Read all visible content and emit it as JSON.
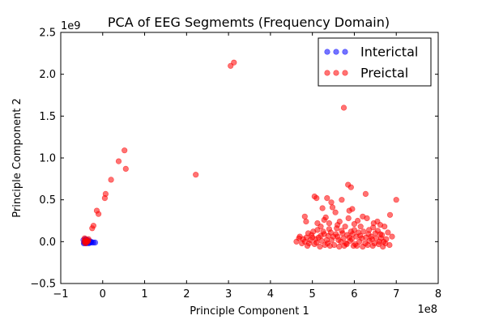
{
  "chart_data": {
    "type": "scatter",
    "title": "PCA of EEG Segmemts (Frequency Domain)",
    "xlabel": "Principle Component 1",
    "ylabel": "Principle Component 2",
    "x_multiplier_label": "1e8",
    "y_multiplier_label": "1e9",
    "xlim": [
      -1,
      8
    ],
    "ylim": [
      -0.5,
      2.5
    ],
    "x_ticks": [
      -1,
      0,
      1,
      2,
      3,
      4,
      5,
      6,
      7,
      8
    ],
    "x_tick_labels": [
      "−1",
      "0",
      "1",
      "2",
      "3",
      "4",
      "5",
      "6",
      "7",
      "8"
    ],
    "y_ticks": [
      -0.5,
      0.0,
      0.5,
      1.0,
      1.5,
      2.0,
      2.5
    ],
    "y_tick_labels": [
      "−0.5",
      "0.0",
      "0.5",
      "1.0",
      "1.5",
      "2.0",
      "2.5"
    ],
    "grid": false,
    "legend_position": "top-right",
    "series": [
      {
        "name": "Interictal",
        "color": "#0000ff",
        "points": [
          [
            -0.46,
            0.02
          ],
          [
            -0.44,
            -0.01
          ],
          [
            -0.42,
            0.01
          ],
          [
            -0.4,
            0.0
          ],
          [
            -0.38,
            0.02
          ],
          [
            -0.36,
            -0.01
          ],
          [
            -0.34,
            0.0
          ],
          [
            -0.32,
            0.01
          ],
          [
            -0.3,
            -0.01
          ],
          [
            -0.28,
            0.0
          ],
          [
            -0.26,
            -0.01
          ],
          [
            -0.22,
            -0.01
          ],
          [
            -0.18,
            -0.01
          ],
          [
            -0.41,
            0.03
          ],
          [
            -0.37,
            0.02
          ],
          [
            -0.33,
            -0.02
          ],
          [
            -0.45,
            -0.02
          ],
          [
            -0.39,
            -0.02
          ],
          [
            -0.43,
            0.0
          ]
        ]
      },
      {
        "name": "Preictal",
        "color": "#ff0000",
        "points": [
          [
            -0.44,
            0.0
          ],
          [
            -0.42,
            0.02
          ],
          [
            -0.4,
            -0.01
          ],
          [
            -0.38,
            0.01
          ],
          [
            -0.36,
            0.0
          ],
          [
            -0.34,
            0.03
          ],
          [
            -0.43,
            0.04
          ],
          [
            -0.41,
            -0.02
          ],
          [
            -0.35,
            0.01
          ],
          [
            -0.25,
            0.16
          ],
          [
            -0.22,
            0.19
          ],
          [
            -0.14,
            0.37
          ],
          [
            -0.1,
            0.33
          ],
          [
            0.05,
            0.52
          ],
          [
            0.07,
            0.57
          ],
          [
            0.2,
            0.74
          ],
          [
            0.38,
            0.96
          ],
          [
            0.52,
            1.09
          ],
          [
            0.55,
            0.87
          ],
          [
            2.22,
            0.8
          ],
          [
            3.05,
            2.1
          ],
          [
            3.13,
            2.14
          ],
          [
            5.75,
            1.6
          ],
          [
            7.0,
            0.5
          ],
          [
            5.05,
            0.54
          ],
          [
            5.1,
            0.52
          ],
          [
            5.85,
            0.68
          ],
          [
            5.92,
            0.65
          ],
          [
            6.27,
            0.57
          ],
          [
            4.82,
            0.3
          ],
          [
            4.85,
            0.24
          ],
          [
            5.28,
            0.26
          ],
          [
            5.4,
            0.22
          ],
          [
            5.55,
            0.35
          ],
          [
            5.88,
            0.37
          ],
          [
            5.95,
            0.39
          ],
          [
            6.55,
            0.24
          ],
          [
            6.85,
            0.32
          ],
          [
            6.72,
            0.18
          ],
          [
            5.45,
            0.47
          ],
          [
            5.48,
            0.41
          ],
          [
            5.35,
            0.52
          ],
          [
            5.7,
            0.5
          ],
          [
            5.32,
            0.29
          ],
          [
            5.65,
            0.24
          ],
          [
            6.08,
            0.25
          ],
          [
            6.3,
            0.28
          ],
          [
            6.45,
            0.17
          ],
          [
            6.62,
            0.2
          ],
          [
            5.2,
            0.18
          ],
          [
            5.12,
            0.14
          ],
          [
            4.9,
            0.1
          ],
          [
            5.02,
            0.12
          ],
          [
            5.58,
            0.16
          ],
          [
            5.78,
            0.18
          ],
          [
            5.92,
            0.12
          ],
          [
            6.15,
            0.18
          ],
          [
            6.35,
            0.14
          ],
          [
            6.8,
            0.11
          ],
          [
            6.9,
            0.06
          ],
          [
            4.7,
            0.06
          ],
          [
            4.78,
            0.03
          ],
          [
            4.62,
            0.0
          ],
          [
            4.75,
            -0.02
          ],
          [
            4.86,
            0.05
          ],
          [
            4.95,
            0.02
          ],
          [
            5.05,
            -0.03
          ],
          [
            5.15,
            0.05
          ],
          [
            5.22,
            0.01
          ],
          [
            5.3,
            -0.04
          ],
          [
            5.38,
            0.07
          ],
          [
            5.46,
            0.02
          ],
          [
            5.52,
            -0.04
          ],
          [
            5.6,
            0.06
          ],
          [
            5.68,
            0.0
          ],
          [
            5.76,
            -0.05
          ],
          [
            5.83,
            0.08
          ],
          [
            5.9,
            0.01
          ],
          [
            5.98,
            -0.05
          ],
          [
            6.05,
            0.06
          ],
          [
            6.12,
            0.0
          ],
          [
            6.2,
            -0.06
          ],
          [
            6.28,
            0.05
          ],
          [
            6.36,
            0.01
          ],
          [
            6.44,
            -0.05
          ],
          [
            6.52,
            0.04
          ],
          [
            6.6,
            0.0
          ],
          [
            6.68,
            -0.06
          ],
          [
            6.76,
            0.03
          ],
          [
            6.84,
            -0.04
          ],
          [
            4.88,
            -0.05
          ],
          [
            4.98,
            0.08
          ],
          [
            5.08,
            0.03
          ],
          [
            5.18,
            -0.06
          ],
          [
            5.28,
            0.09
          ],
          [
            5.36,
            -0.02
          ],
          [
            5.44,
            0.11
          ],
          [
            5.56,
            0.09
          ],
          [
            5.64,
            -0.06
          ],
          [
            5.72,
            0.1
          ],
          [
            5.8,
            -0.02
          ],
          [
            5.88,
            0.05
          ],
          [
            5.96,
            0.09
          ],
          [
            6.02,
            -0.03
          ],
          [
            6.1,
            0.11
          ],
          [
            6.18,
            0.04
          ],
          [
            6.26,
            -0.02
          ],
          [
            6.34,
            0.09
          ],
          [
            6.42,
            0.03
          ],
          [
            6.5,
            0.1
          ],
          [
            6.58,
            -0.03
          ],
          [
            6.66,
            0.08
          ],
          [
            6.74,
            -0.02
          ],
          [
            4.68,
            0.04
          ],
          [
            4.82,
            0.0
          ],
          [
            4.92,
            -0.02
          ],
          [
            5.0,
            0.05
          ],
          [
            5.1,
            -0.01
          ],
          [
            5.2,
            0.07
          ],
          [
            5.26,
            0.12
          ],
          [
            5.34,
            0.02
          ],
          [
            5.42,
            -0.05
          ],
          [
            5.5,
            0.06
          ],
          [
            5.62,
            0.02
          ],
          [
            5.7,
            0.13
          ],
          [
            5.74,
            0.04
          ],
          [
            5.82,
            -0.03
          ],
          [
            5.94,
            0.03
          ],
          [
            6.0,
            0.14
          ],
          [
            6.06,
            -0.05
          ],
          [
            6.14,
            0.07
          ],
          [
            6.22,
            0.12
          ],
          [
            6.32,
            -0.04
          ],
          [
            6.4,
            0.06
          ],
          [
            6.48,
            -0.02
          ],
          [
            6.56,
            0.13
          ],
          [
            6.64,
            0.04
          ],
          [
            6.7,
            0.0
          ],
          [
            5.4,
            0.15
          ],
          [
            5.6,
            0.2
          ],
          [
            6.0,
            0.21
          ],
          [
            6.2,
            0.3
          ],
          [
            5.12,
            0.22
          ],
          [
            5.86,
            0.28
          ],
          [
            6.46,
            0.22
          ],
          [
            5.24,
            0.4
          ],
          [
            6.62,
            0.09
          ]
        ]
      }
    ]
  }
}
